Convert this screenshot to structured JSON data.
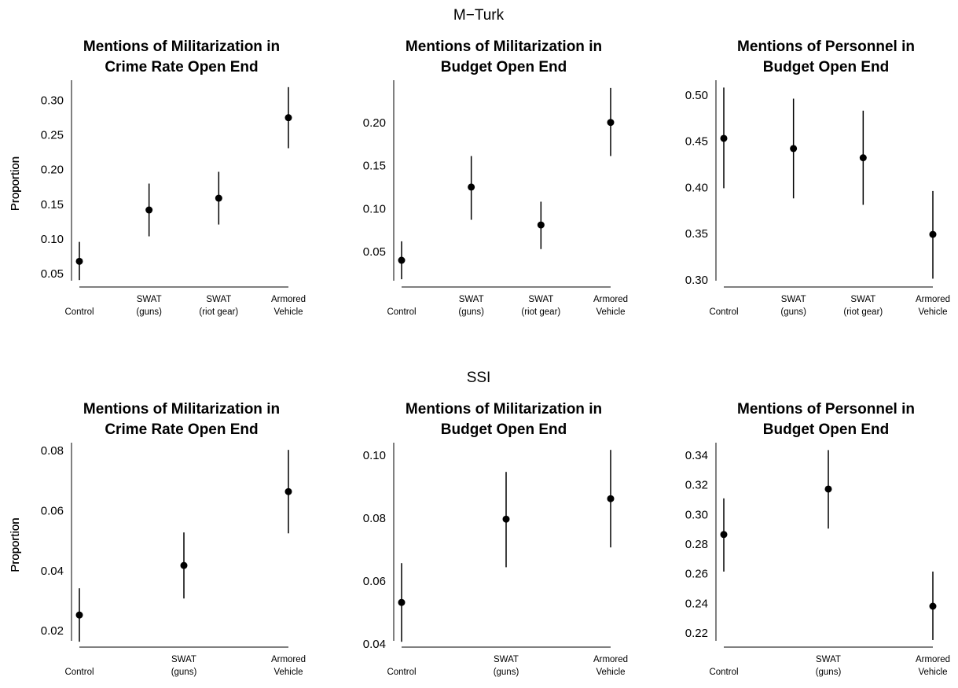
{
  "section_titles": [
    "M−Turk",
    "SSI"
  ],
  "chart_data": [
    {
      "type": "pointrange",
      "title": [
        "Mentions of Militarization in",
        "Crime Rate Open End"
      ],
      "ylabel": "Proportion",
      "categories": [
        [
          "Control"
        ],
        [
          "SWAT",
          "(guns)"
        ],
        [
          "SWAT",
          "(riot gear)"
        ],
        [
          "Armored",
          "Vehicle"
        ]
      ],
      "values": [
        0.069,
        0.143,
        0.16,
        0.276
      ],
      "lower": [
        0.042,
        0.105,
        0.122,
        0.232
      ],
      "upper": [
        0.097,
        0.181,
        0.198,
        0.32
      ],
      "ylim": [
        0.032,
        0.33
      ],
      "yticks": [
        0.05,
        {
          "value": 0.1,
          "label": "0.10"
        },
        0.15,
        {
          "value": 0.2,
          "label": "0.20"
        },
        0.25,
        {
          "value": 0.3,
          "label": "0.30"
        }
      ],
      "color": "#000000"
    },
    {
      "type": "pointrange",
      "title": [
        "Mentions of Militarization in",
        "Budget Open End"
      ],
      "ylabel": "Proportion",
      "categories": [
        [
          "Control"
        ],
        [
          "SWAT",
          "(guns)"
        ],
        [
          "SWAT",
          "(riot gear)"
        ],
        [
          "Armored",
          "Vehicle"
        ]
      ],
      "values": [
        0.041,
        0.126,
        0.082,
        0.201
      ],
      "lower": [
        0.019,
        0.088,
        0.054,
        0.162
      ],
      "upper": [
        0.063,
        0.162,
        0.109,
        0.241
      ],
      "ylim": [
        0.01,
        0.25
      ],
      "yticks": [
        0.05,
        {
          "value": 0.1,
          "label": "0.10"
        },
        0.15,
        {
          "value": 0.2,
          "label": "0.20"
        }
      ],
      "color": "#000000"
    },
    {
      "type": "pointrange",
      "title": [
        "Mentions of Personnel in",
        "Budget Open End"
      ],
      "ylabel": "Proportion",
      "categories": [
        [
          "Control"
        ],
        [
          "SWAT",
          "(guns)"
        ],
        [
          "SWAT",
          "(riot gear)"
        ],
        [
          "Armored",
          "Vehicle"
        ]
      ],
      "values": [
        0.454,
        0.443,
        0.433,
        0.35
      ],
      "lower": [
        0.4,
        0.389,
        0.382,
        0.302
      ],
      "upper": [
        0.509,
        0.497,
        0.484,
        0.397
      ],
      "ylim": [
        0.293,
        0.517
      ],
      "yticks": [
        {
          "value": 0.3,
          "label": "0.30"
        },
        0.35,
        {
          "value": 0.4,
          "label": "0.40"
        },
        0.45,
        {
          "value": 0.5,
          "label": "0.50"
        }
      ],
      "color": "#000000"
    },
    {
      "type": "pointrange",
      "title": [
        "Mentions of Militarization in",
        "Crime Rate Open End"
      ],
      "ylabel": "Proportion",
      "categories": [
        [
          "Control"
        ],
        [
          "SWAT",
          "(guns)"
        ],
        [
          "Armored",
          "Vehicle"
        ]
      ],
      "values": [
        0.0255,
        0.042,
        0.0666
      ],
      "lower": [
        0.0166,
        0.031,
        0.0527
      ],
      "upper": [
        0.0344,
        0.053,
        0.0805
      ],
      "ylim": [
        0.0148,
        0.0829
      ],
      "yticks": [
        0.02,
        0.04,
        0.06,
        0.08
      ],
      "color": "#000000"
    },
    {
      "type": "pointrange",
      "title": [
        "Mentions of Militarization in",
        "Budget Open End"
      ],
      "ylabel": "Proportion",
      "categories": [
        [
          "Control"
        ],
        [
          "SWAT",
          "(guns)"
        ],
        [
          "Armored",
          "Vehicle"
        ]
      ],
      "values": [
        0.0535,
        0.08,
        0.0865
      ],
      "lower": [
        0.041,
        0.0647,
        0.071
      ],
      "upper": [
        0.066,
        0.095,
        0.102
      ],
      "ylim": [
        0.0393,
        0.1043
      ],
      "yticks": [
        0.04,
        0.06,
        0.08,
        {
          "value": 0.1,
          "label": "0.10"
        }
      ],
      "color": "#000000"
    },
    {
      "type": "pointrange",
      "title": [
        "Mentions of Personnel in",
        "Budget Open End"
      ],
      "ylabel": "Proportion",
      "categories": [
        [
          "Control"
        ],
        [
          "SWAT",
          "(guns)"
        ],
        [
          "Armored",
          "Vehicle"
        ]
      ],
      "values": [
        0.287,
        0.3177,
        0.2386
      ],
      "lower": [
        0.262,
        0.291,
        0.2158
      ],
      "upper": [
        0.3114,
        0.344,
        0.262
      ],
      "ylim": [
        0.211,
        0.349
      ],
      "yticks": [
        0.22,
        0.24,
        0.26,
        0.28,
        {
          "value": 0.3,
          "label": "0.30"
        },
        0.32,
        0.34
      ],
      "color": "#000000"
    }
  ]
}
